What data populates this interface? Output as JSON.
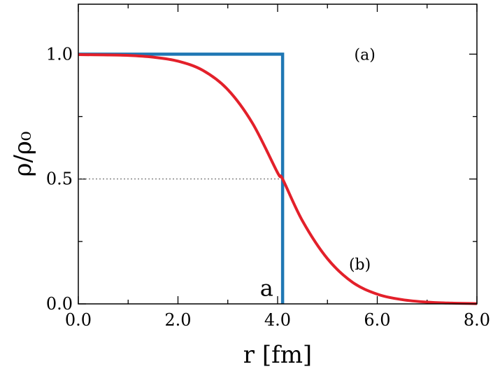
{
  "chart_data": {
    "type": "line",
    "title": "",
    "xlabel": "r [fm]",
    "ylabel": "ρ/ρ₀",
    "xlim": [
      0,
      8
    ],
    "ylim": [
      0,
      1.2
    ],
    "x_ticks": [
      {
        "value": 0,
        "label": "0.0"
      },
      {
        "value": 2,
        "label": "2.0"
      },
      {
        "value": 4,
        "label": "4.0"
      },
      {
        "value": 6,
        "label": "6.0"
      },
      {
        "value": 8,
        "label": "8.0"
      }
    ],
    "y_ticks": [
      {
        "value": 0,
        "label": "0.0"
      },
      {
        "value": 0.5,
        "label": "0.5"
      },
      {
        "value": 1.0,
        "label": "1.0"
      }
    ],
    "grid": false,
    "series": [
      {
        "color": "#1f77b4",
        "x": [
          0,
          4.1,
          4.1
        ],
        "y": [
          1.0,
          1.0,
          0.0
        ]
      },
      {
        "color": "#e3202a",
        "x": [
          0,
          0.5,
          1.0,
          1.5,
          2.0,
          2.5,
          3.0,
          3.5,
          4.0,
          4.1,
          4.5,
          5.0,
          5.5,
          6.0,
          6.5,
          7.0,
          7.5,
          8.0
        ],
        "y": [
          0.998,
          0.997,
          0.995,
          0.988,
          0.972,
          0.935,
          0.858,
          0.722,
          0.525,
          0.5,
          0.332,
          0.181,
          0.087,
          0.039,
          0.017,
          0.007,
          0.003,
          0.001
        ]
      }
    ],
    "reference_line": {
      "y": 0.5,
      "x_end": 4.1,
      "style": "dotted"
    },
    "annotations": [
      {
        "text": "(a)",
        "x": 5.75,
        "y": 1.0
      },
      {
        "text": "(b)",
        "x": 5.65,
        "y": 0.16
      },
      {
        "text": "a",
        "x": 3.78,
        "y": 0.06
      }
    ]
  }
}
